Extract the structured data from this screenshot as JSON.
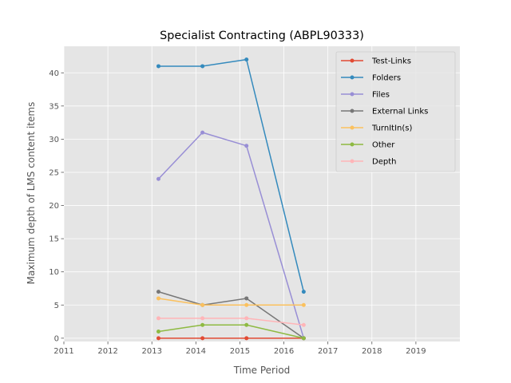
{
  "chart_data": {
    "type": "line",
    "title": "Specialist Contracting (ABPL90333)",
    "xlabel": "Time Period",
    "ylabel": "Maximum depth of LMS content items",
    "xlim": [
      2011.0,
      2020.0
    ],
    "ylim": [
      -0.5,
      44.0
    ],
    "x_ticks": [
      2011,
      2012,
      2013,
      2014,
      2015,
      2016,
      2017,
      2018,
      2019
    ],
    "y_ticks": [
      0,
      5,
      10,
      15,
      20,
      25,
      30,
      35,
      40
    ],
    "x": [
      2013.15,
      2014.15,
      2015.15,
      2016.45
    ],
    "grid": true,
    "legend_position": "top-right",
    "series": [
      {
        "name": "Test-Links",
        "color": "#E24A33",
        "values": [
          0,
          0,
          0,
          0
        ]
      },
      {
        "name": "Folders",
        "color": "#348ABD",
        "values": [
          41,
          41,
          42,
          7
        ]
      },
      {
        "name": "Files",
        "color": "#988ED5",
        "values": [
          24,
          31,
          29,
          0
        ]
      },
      {
        "name": "External Links",
        "color": "#777777",
        "values": [
          7,
          5,
          6,
          0
        ]
      },
      {
        "name": "TurnItIn(s)",
        "color": "#FBC15E",
        "values": [
          6,
          5,
          5,
          5
        ]
      },
      {
        "name": "Other",
        "color": "#8EBA42",
        "values": [
          1,
          2,
          2,
          0
        ]
      },
      {
        "name": "Depth",
        "color": "#FFB5B8",
        "values": [
          3,
          3,
          3,
          2
        ]
      }
    ]
  }
}
